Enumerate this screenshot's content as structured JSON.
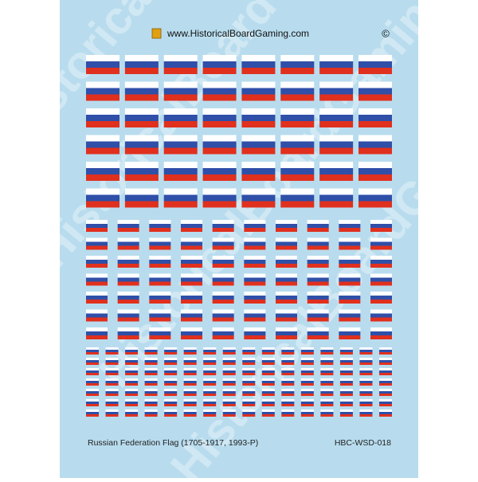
{
  "header": {
    "url": "www.HistoricalBoardGaming.com",
    "copyright": "©"
  },
  "watermark": "HistoricalBoardGaming",
  "footer": {
    "title": "Russian Federation Flag (1705-1917, 1993-P)",
    "code": "HBC-WSD-018"
  }
}
